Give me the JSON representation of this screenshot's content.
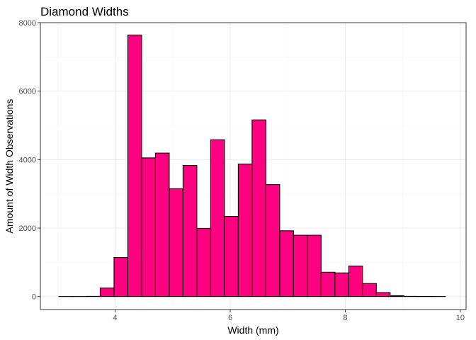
{
  "chart_data": {
    "type": "bar",
    "title": "Diamond Widths",
    "xlabel": "Width (mm)",
    "ylabel": "Amount of Width Observations",
    "xlim": [
      2.7,
      10.1
    ],
    "ylim": [
      -380,
      8000
    ],
    "x_ticks": [
      4,
      6,
      8,
      10
    ],
    "y_ticks": [
      0,
      2000,
      4000,
      6000,
      8000
    ],
    "grid": true,
    "bin_width": 0.24,
    "fill_color": "#ff0080",
    "edge_color": "#000000",
    "bins": [
      {
        "x0": 3.02,
        "x1": 3.26,
        "count": 0
      },
      {
        "x0": 3.26,
        "x1": 3.5,
        "count": 0
      },
      {
        "x0": 3.5,
        "x1": 3.74,
        "count": 5
      },
      {
        "x0": 3.74,
        "x1": 3.98,
        "count": 250
      },
      {
        "x0": 3.98,
        "x1": 4.22,
        "count": 1140
      },
      {
        "x0": 4.22,
        "x1": 4.46,
        "count": 7640
      },
      {
        "x0": 4.46,
        "x1": 4.7,
        "count": 4050
      },
      {
        "x0": 4.7,
        "x1": 4.94,
        "count": 4190
      },
      {
        "x0": 4.94,
        "x1": 5.18,
        "count": 3150
      },
      {
        "x0": 5.18,
        "x1": 5.42,
        "count": 3830
      },
      {
        "x0": 5.42,
        "x1": 5.66,
        "count": 1990
      },
      {
        "x0": 5.66,
        "x1": 5.9,
        "count": 4580
      },
      {
        "x0": 5.9,
        "x1": 6.14,
        "count": 2340
      },
      {
        "x0": 6.14,
        "x1": 6.38,
        "count": 3870
      },
      {
        "x0": 6.38,
        "x1": 6.62,
        "count": 5160
      },
      {
        "x0": 6.62,
        "x1": 6.86,
        "count": 3270
      },
      {
        "x0": 6.86,
        "x1": 7.1,
        "count": 1920
      },
      {
        "x0": 7.1,
        "x1": 7.34,
        "count": 1790
      },
      {
        "x0": 7.34,
        "x1": 7.58,
        "count": 1790
      },
      {
        "x0": 7.58,
        "x1": 7.82,
        "count": 710
      },
      {
        "x0": 7.82,
        "x1": 8.06,
        "count": 690
      },
      {
        "x0": 8.06,
        "x1": 8.3,
        "count": 890
      },
      {
        "x0": 8.3,
        "x1": 8.54,
        "count": 380
      },
      {
        "x0": 8.54,
        "x1": 8.78,
        "count": 115
      },
      {
        "x0": 8.78,
        "x1": 9.02,
        "count": 25
      },
      {
        "x0": 9.02,
        "x1": 9.26,
        "count": 5
      },
      {
        "x0": 9.26,
        "x1": 9.5,
        "count": 2
      },
      {
        "x0": 9.5,
        "x1": 9.74,
        "count": 1
      }
    ]
  }
}
